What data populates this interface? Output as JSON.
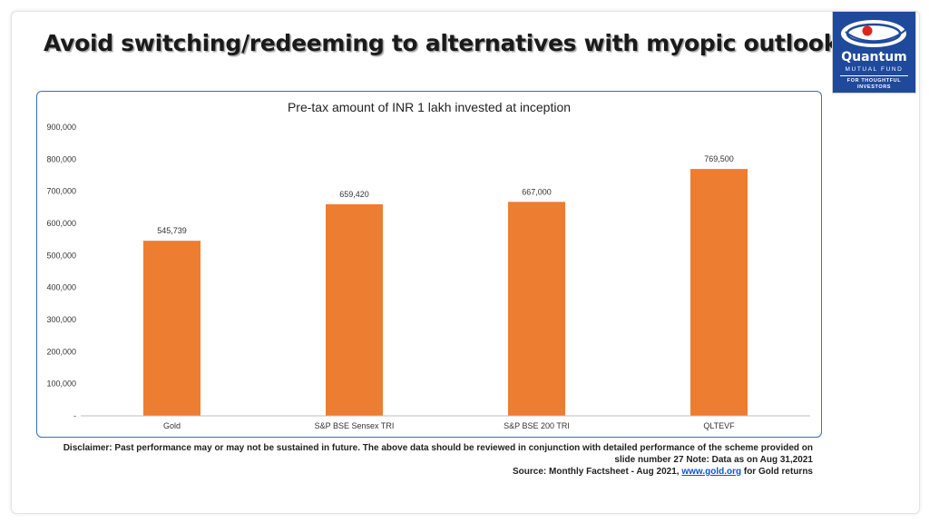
{
  "header": {
    "title": "Avoid switching/redeeming to alternatives with myopic outlook"
  },
  "logo": {
    "name": "Quantum",
    "sub": "MUTUAL FUND",
    "tagline": "FOR THOUGHTFUL INVESTORS",
    "colors": {
      "background": "#1f4a9c",
      "accent": "#e2231a"
    }
  },
  "chart_data": {
    "type": "bar",
    "title": "Pre-tax amount of INR 1 lakh invested at inception",
    "categories": [
      "Gold",
      "S&P BSE Sensex TRI",
      "S&P BSE 200 TRI",
      "QLTEVF"
    ],
    "values": [
      545739,
      659420,
      667000,
      769500
    ],
    "data_labels": [
      "545,739",
      "659,420",
      "667,000",
      "769,500"
    ],
    "y_ticks": [
      "-",
      "100,000",
      "200,000",
      "300,000",
      "400,000",
      "500,000",
      "600,000",
      "700,000",
      "800,000",
      "900,000"
    ],
    "ylim": [
      0,
      900000
    ],
    "grid": false,
    "legend": "none",
    "bar_color": "#ed7d31"
  },
  "footer": {
    "line1": "Disclaimer: Past performance may or may not be sustained in future. The above data should be reviewed in conjunction with detailed performance of the scheme provided on",
    "line2": "slide number 27 Note: Data as on Aug 31,2021",
    "line3_prefix": "Source: Monthly Factsheet - Aug 2021, ",
    "link": "www.gold.org",
    "line3_suffix": " for Gold returns"
  }
}
